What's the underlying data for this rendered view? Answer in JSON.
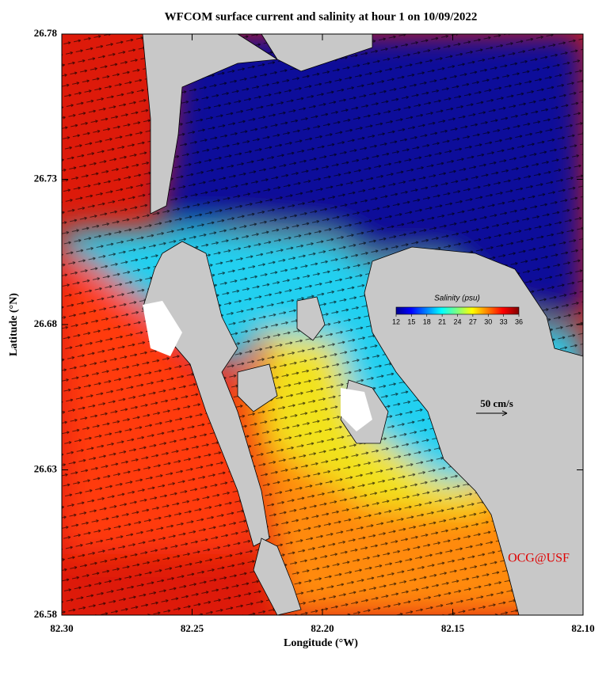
{
  "title": "WFCOM surface current and salinity at hour 1 on 10/09/2022",
  "x_axis": {
    "label": "Longitude (°W)",
    "lim": [
      82.3,
      82.1
    ],
    "ticks": [
      {
        "value": 82.3,
        "label": "82.30"
      },
      82.25,
      {
        "value": 82.2,
        "label": "82.20"
      },
      82.15,
      {
        "value": 82.1,
        "label": "82.10"
      }
    ]
  },
  "y_axis": {
    "label": "Latitude (°N)",
    "lim": [
      26.58,
      26.78
    ],
    "ticks": [
      26.58,
      26.63,
      26.68,
      26.73,
      26.78
    ]
  },
  "colorbar": {
    "label": "Salinity (psu)",
    "lim": [
      12,
      36
    ],
    "ticks": [
      12,
      15,
      18,
      21,
      24,
      27,
      30,
      33,
      36
    ]
  },
  "scale_arrow": "50 cm/s",
  "credit": "OCG@USF"
}
